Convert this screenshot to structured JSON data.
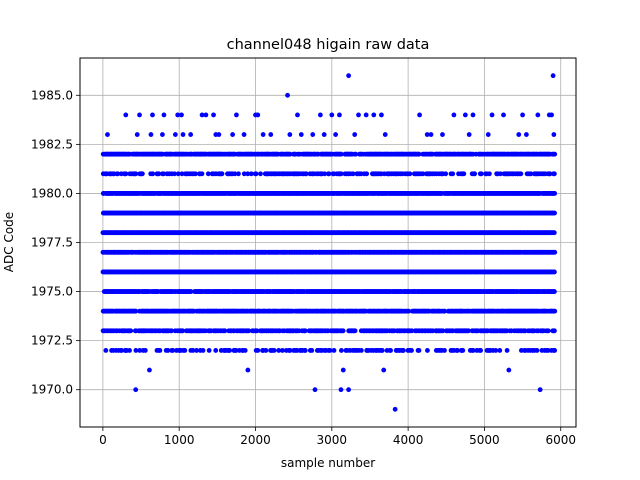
{
  "chart_data": {
    "type": "scatter",
    "title": "channel048 higain raw data",
    "xlabel": "sample number",
    "ylabel": "ADC Code",
    "xlim": [
      -300,
      6200
    ],
    "ylim": [
      1968.1,
      1986.9
    ],
    "x_ticks": [
      0,
      1000,
      2000,
      3000,
      4000,
      5000,
      6000
    ],
    "x_tick_labels": [
      "0",
      "1000",
      "2000",
      "3000",
      "4000",
      "5000",
      "6000"
    ],
    "y_ticks": [
      1970.0,
      1972.5,
      1975.0,
      1977.5,
      1980.0,
      1982.5,
      1985.0
    ],
    "y_tick_labels": [
      "1970.0",
      "1972.5",
      "1975.0",
      "1977.5",
      "1980.0",
      "1982.5",
      "1985.0"
    ],
    "grid": true,
    "marker_color": "#0000ff",
    "sample_range": [
      0,
      5920
    ],
    "levels": [
      {
        "adc": 1982,
        "density": 0.85
      },
      {
        "adc": 1981,
        "density": 0.45
      },
      {
        "adc": 1980,
        "density": 0.95
      },
      {
        "adc": 1979,
        "density": 1.0
      },
      {
        "adc": 1978,
        "density": 1.0
      },
      {
        "adc": 1977,
        "density": 0.95
      },
      {
        "adc": 1976,
        "density": 1.0
      },
      {
        "adc": 1975,
        "density": 0.95
      },
      {
        "adc": 1974,
        "density": 0.85
      },
      {
        "adc": 1973,
        "density": 0.7
      },
      {
        "adc": 1972,
        "density": 0.3
      }
    ],
    "sparse_points": [
      {
        "x": 60,
        "y": 1983
      },
      {
        "x": 300,
        "y": 1984
      },
      {
        "x": 450,
        "y": 1983
      },
      {
        "x": 480,
        "y": 1984
      },
      {
        "x": 630,
        "y": 1983
      },
      {
        "x": 650,
        "y": 1984
      },
      {
        "x": 780,
        "y": 1983
      },
      {
        "x": 800,
        "y": 1984
      },
      {
        "x": 950,
        "y": 1983
      },
      {
        "x": 980,
        "y": 1984
      },
      {
        "x": 1030,
        "y": 1984
      },
      {
        "x": 1050,
        "y": 1983
      },
      {
        "x": 1150,
        "y": 1983
      },
      {
        "x": 1300,
        "y": 1984
      },
      {
        "x": 1350,
        "y": 1984
      },
      {
        "x": 1450,
        "y": 1984
      },
      {
        "x": 1480,
        "y": 1983
      },
      {
        "x": 1520,
        "y": 1983
      },
      {
        "x": 1700,
        "y": 1983
      },
      {
        "x": 1750,
        "y": 1984
      },
      {
        "x": 1850,
        "y": 1983
      },
      {
        "x": 2000,
        "y": 1984
      },
      {
        "x": 2030,
        "y": 1984
      },
      {
        "x": 2100,
        "y": 1983
      },
      {
        "x": 2200,
        "y": 1983
      },
      {
        "x": 2420,
        "y": 1985
      },
      {
        "x": 2450,
        "y": 1983
      },
      {
        "x": 2550,
        "y": 1984
      },
      {
        "x": 2600,
        "y": 1983
      },
      {
        "x": 2750,
        "y": 1983
      },
      {
        "x": 2850,
        "y": 1984
      },
      {
        "x": 2900,
        "y": 1983
      },
      {
        "x": 3000,
        "y": 1984
      },
      {
        "x": 3050,
        "y": 1983
      },
      {
        "x": 3100,
        "y": 1984
      },
      {
        "x": 3220,
        "y": 1986
      },
      {
        "x": 3300,
        "y": 1983
      },
      {
        "x": 3350,
        "y": 1984
      },
      {
        "x": 3450,
        "y": 1984
      },
      {
        "x": 3550,
        "y": 1984
      },
      {
        "x": 3650,
        "y": 1984
      },
      {
        "x": 3700,
        "y": 1983
      },
      {
        "x": 4150,
        "y": 1984
      },
      {
        "x": 4250,
        "y": 1983
      },
      {
        "x": 4300,
        "y": 1983
      },
      {
        "x": 4450,
        "y": 1983
      },
      {
        "x": 4600,
        "y": 1984
      },
      {
        "x": 4750,
        "y": 1984
      },
      {
        "x": 4800,
        "y": 1983
      },
      {
        "x": 4850,
        "y": 1984
      },
      {
        "x": 5050,
        "y": 1983
      },
      {
        "x": 5100,
        "y": 1984
      },
      {
        "x": 5250,
        "y": 1984
      },
      {
        "x": 5450,
        "y": 1983
      },
      {
        "x": 5500,
        "y": 1984
      },
      {
        "x": 5550,
        "y": 1983
      },
      {
        "x": 5700,
        "y": 1984
      },
      {
        "x": 5850,
        "y": 1984
      },
      {
        "x": 5880,
        "y": 1984
      },
      {
        "x": 5900,
        "y": 1986
      },
      {
        "x": 5910,
        "y": 1983
      },
      {
        "x": 610,
        "y": 1971
      },
      {
        "x": 1900,
        "y": 1971
      },
      {
        "x": 3150,
        "y": 1971
      },
      {
        "x": 3680,
        "y": 1971
      },
      {
        "x": 5320,
        "y": 1971
      },
      {
        "x": 430,
        "y": 1970
      },
      {
        "x": 2780,
        "y": 1970
      },
      {
        "x": 3120,
        "y": 1970
      },
      {
        "x": 3220,
        "y": 1970
      },
      {
        "x": 5730,
        "y": 1970
      },
      {
        "x": 3830,
        "y": 1969
      }
    ]
  }
}
